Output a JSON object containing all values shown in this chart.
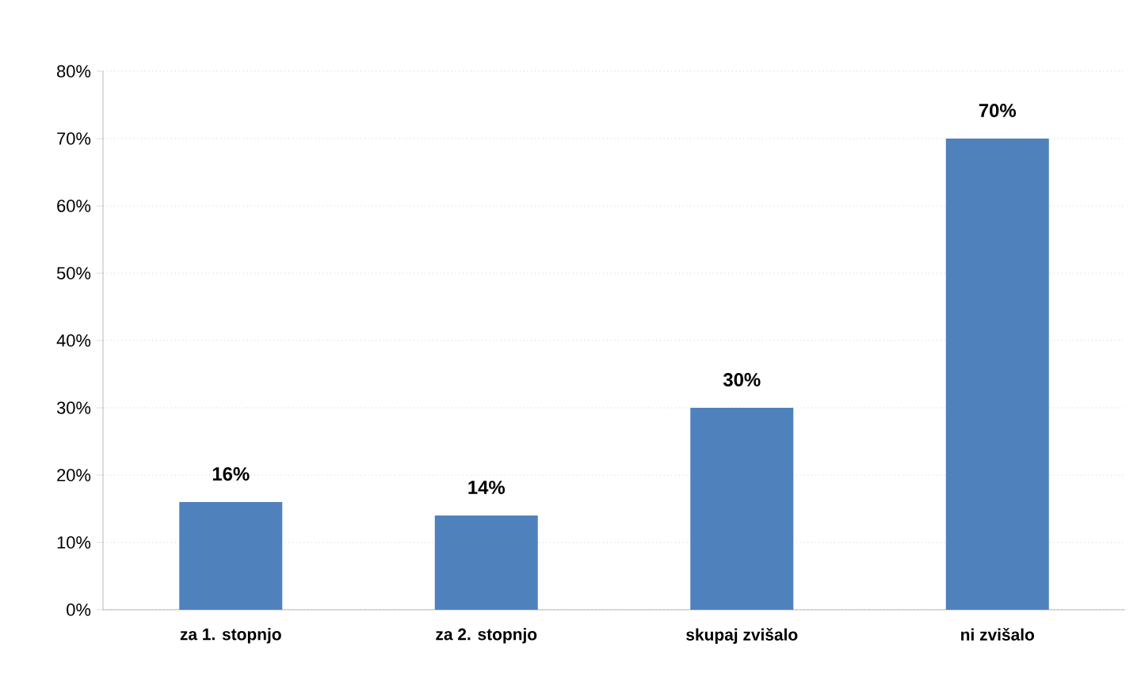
{
  "chart_data": {
    "type": "bar",
    "categories": [
      "za 1. stopnjo",
      "za 2. stopnjo",
      "skupaj  zvišalo",
      "ni zvišalo"
    ],
    "values": [
      16,
      14,
      30,
      70
    ],
    "value_labels": [
      "16%",
      "14%",
      "30%",
      "70%"
    ],
    "color": "#4f81bd",
    "ylim": [
      0,
      80
    ],
    "yticks": [
      {
        "value": 0,
        "label": "0%"
      },
      {
        "value": 10,
        "label": "10%"
      },
      {
        "value": 20,
        "label": "20%"
      },
      {
        "value": 30,
        "label": "30%"
      },
      {
        "value": 40,
        "label": "40%"
      },
      {
        "value": 50,
        "label": "50%"
      },
      {
        "value": 60,
        "label": "60%"
      },
      {
        "value": 70,
        "label": "70%"
      },
      {
        "value": 80,
        "label": "80%"
      }
    ],
    "grid": "y"
  }
}
